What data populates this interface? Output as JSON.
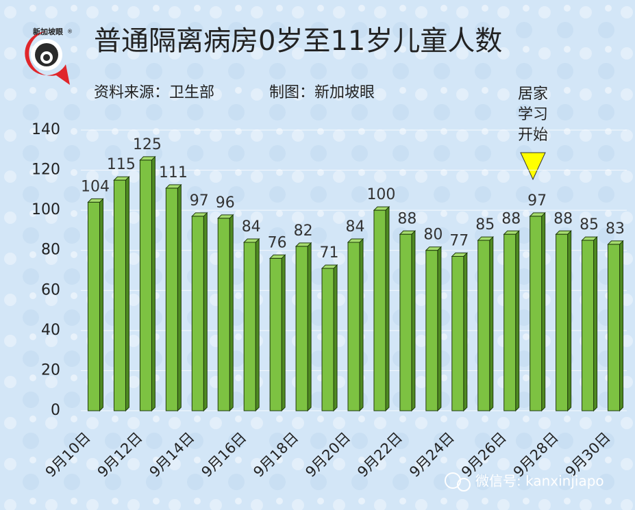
{
  "chart_data": {
    "type": "bar",
    "title": "普通隔离病房0岁至11岁儿童人数",
    "subtitle": [
      "资料来源：卫生部",
      "制图：新加坡眼"
    ],
    "logo": "新加坡眼",
    "logo_mark": "®",
    "annotation": [
      "居家",
      "学习",
      "开始"
    ],
    "watermark": "微信号: kanxinjiapo",
    "categories": [
      "9月10日",
      null,
      "9月12日",
      null,
      "9月14日",
      null,
      "9月16日",
      null,
      "9月18日",
      null,
      "9月20日",
      null,
      "9月22日",
      null,
      "9月24日",
      null,
      "9月26日",
      null,
      "9月28日",
      null,
      "9月30日"
    ],
    "values": [
      104,
      115,
      125,
      111,
      97,
      96,
      84,
      76,
      82,
      71,
      84,
      100,
      88,
      80,
      77,
      85,
      88,
      97,
      88,
      85,
      83
    ],
    "color": "#7dc242",
    "ylim": [
      0,
      140
    ],
    "yticks": [
      0,
      20,
      40,
      60,
      80,
      100,
      120,
      140
    ],
    "grid": true
  }
}
